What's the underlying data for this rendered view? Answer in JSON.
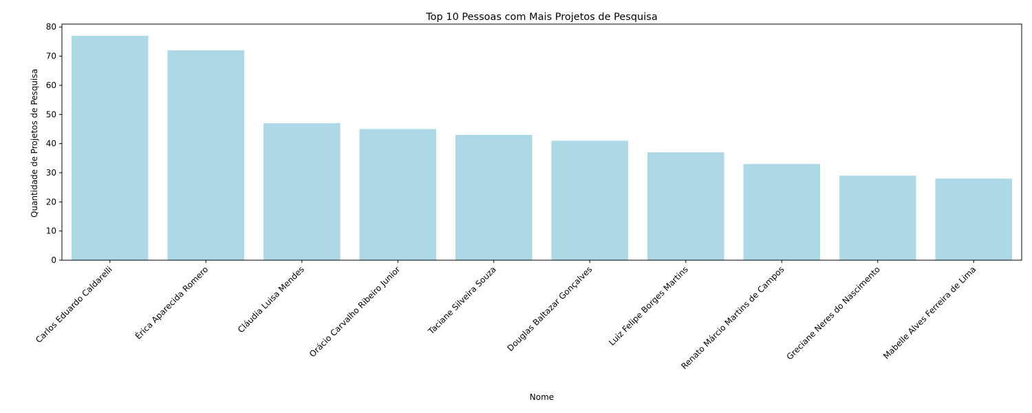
{
  "chart_data": {
    "type": "bar",
    "title": "Top 10 Pessoas com Mais Projetos de Pesquisa",
    "xlabel": "Nome",
    "ylabel": "Quantidade de Projetos de Pesquisa",
    "categories": [
      "Carlos Eduardo Caldarelli",
      "Érica Aparecida Romero",
      "Cláudia Luisa Mendes",
      "Orácio Carvalho Ribeiro Junior",
      "Taciane Silveira Souza",
      "Douglas Baltazar Gonçalves",
      "Luiz Felipe Borges Martins",
      "Renato Márcio Martins de Campos",
      "Greciane Neres do Nascimento",
      "Mabelle Alves Ferreira de Lima"
    ],
    "values": [
      77,
      72,
      47,
      45,
      43,
      41,
      37,
      33,
      29,
      28
    ],
    "ylim": [
      0,
      81
    ],
    "yticks": [
      0,
      10,
      20,
      30,
      40,
      50,
      60,
      70,
      80
    ],
    "grid": false,
    "bar_color": "#add8e6"
  }
}
